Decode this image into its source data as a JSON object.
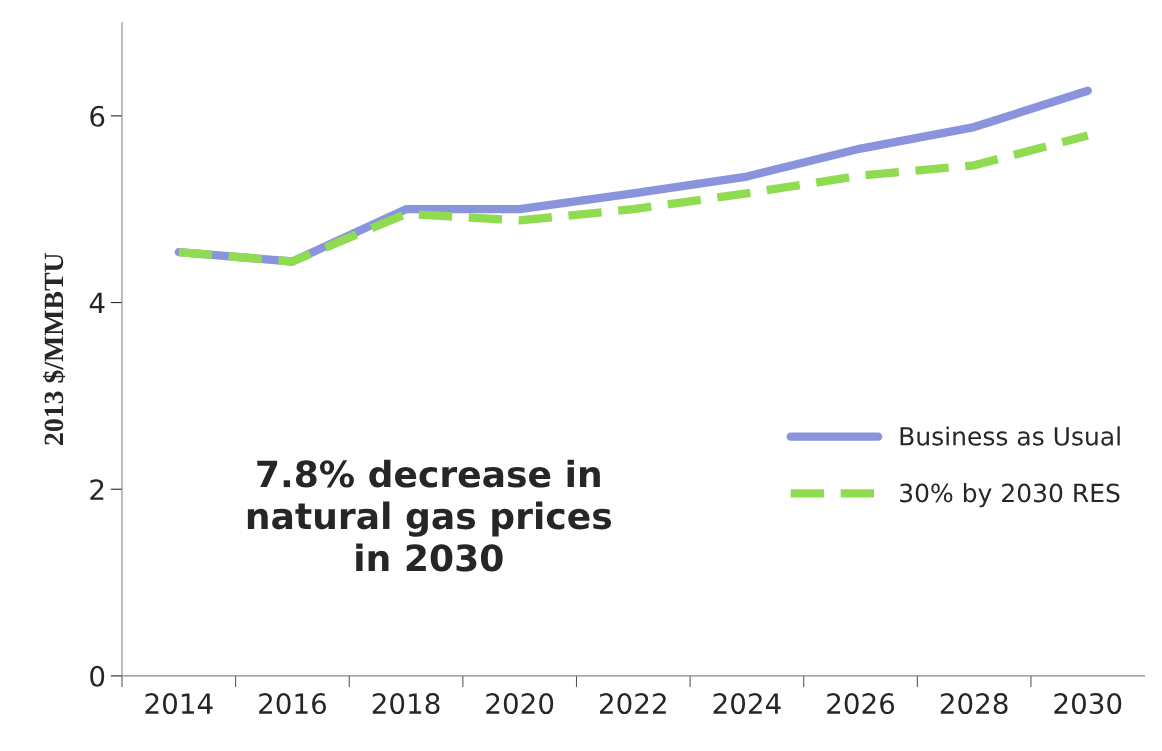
{
  "chart_data": {
    "type": "line",
    "ylabel": "2013 $/MMBTU",
    "categories": [
      "2014",
      "2016",
      "2018",
      "2020",
      "2022",
      "2024",
      "2026",
      "2028",
      "2030"
    ],
    "series": [
      {
        "name": "Business as Usual",
        "color": "#8a94dc",
        "line_style": "solid",
        "values": [
          4.54,
          4.44,
          5.0,
          5.0,
          5.17,
          5.35,
          5.65,
          5.88,
          6.27
        ]
      },
      {
        "name": "30% by 2030 RES",
        "color": "#90dc50",
        "line_style": "dashed",
        "values": [
          4.54,
          4.44,
          4.95,
          4.88,
          5.0,
          5.17,
          5.36,
          5.47,
          5.79
        ]
      }
    ],
    "ylim": [
      0,
      7
    ],
    "yticks": [
      0,
      2,
      4,
      6
    ],
    "grid": false,
    "legend": "right",
    "annotations": [
      "7.8% decrease in\nnatural gas prices\nin 2030"
    ]
  }
}
